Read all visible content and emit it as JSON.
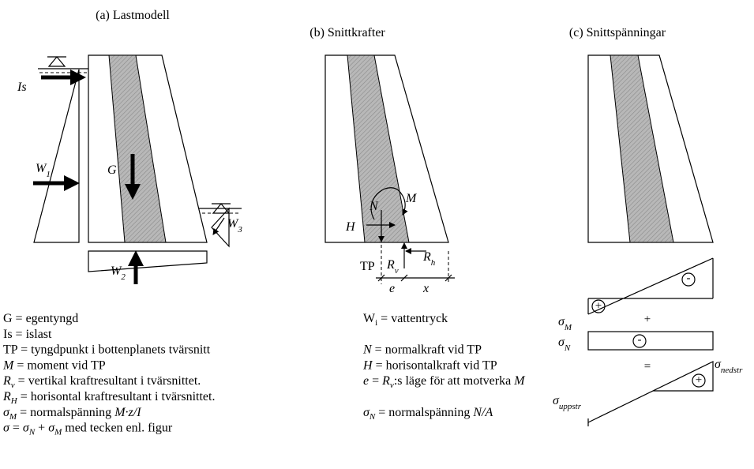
{
  "panel_a": {
    "title": "(a) Lastmodell",
    "is": "Is",
    "w1": {
      "text": "W",
      "sub": "1"
    },
    "g": "G",
    "w3": {
      "text": "W",
      "sub": "3"
    },
    "w2": {
      "text": "W",
      "sub": "2"
    }
  },
  "panel_b": {
    "title": "(b) Snittkrafter",
    "n": "N",
    "m": "M",
    "h": "H",
    "tp": "TP",
    "rv": {
      "text": "R",
      "sub": "v"
    },
    "rh": {
      "text": "R",
      "sub": "h"
    },
    "e": "e",
    "x": "x"
  },
  "panel_c": {
    "title": "(c) Snittspänningar",
    "sigma_m": {
      "text": "σ",
      "sub": "M"
    },
    "sign_m_pos": "+",
    "sign_m_neg": "-",
    "plus": "+",
    "sigma_n": {
      "text": "σ",
      "sub": "N"
    },
    "sign_n": "-",
    "equals": "=",
    "sigma_nedstr": {
      "text": "σ",
      "sub": "nedstr"
    },
    "sigma_uppstr": {
      "text": "σ",
      "sub": "uppstr"
    },
    "sign_result": "+"
  },
  "legend": {
    "left": [
      [
        {
          "text": "G = egentyngd",
          "style": "normal"
        }
      ],
      [
        {
          "text": "Is = islast",
          "style": "normal"
        }
      ],
      [
        {
          "text": "TP = tyngdpunkt i bottenplanets tvärsnitt",
          "style": "normal"
        }
      ],
      [
        {
          "text": "M",
          "style": "italic"
        },
        {
          "text": " = moment  vid TP",
          "style": "normal"
        }
      ],
      [
        {
          "text": "R",
          "style": "italic"
        },
        {
          "text": "v",
          "style": "italic-sub"
        },
        {
          "text": " = vertikal kraftresultant i tvärsnittet.",
          "style": "normal"
        }
      ],
      [
        {
          "text": "R",
          "style": "italic"
        },
        {
          "text": "H",
          "style": "italic-sub"
        },
        {
          "text": " = horisontal kraftresultant i tvärsnittet.",
          "style": "normal"
        }
      ],
      [
        {
          "text": "σ",
          "style": "italic"
        },
        {
          "text": "M",
          "style": "italic-sub"
        },
        {
          "text": " = normalspänning ",
          "style": "normal"
        },
        {
          "text": "M·z/I",
          "style": "italic"
        }
      ],
      [
        {
          "text": "σ",
          "style": "italic"
        },
        {
          "text": " = ",
          "style": "normal"
        },
        {
          "text": "σ",
          "style": "italic"
        },
        {
          "text": "N",
          "style": "italic-sub"
        },
        {
          "text": " + ",
          "style": "normal"
        },
        {
          "text": "σ",
          "style": "italic"
        },
        {
          "text": "M",
          "style": "italic-sub"
        },
        {
          "text": " med tecken enl. figur",
          "style": "normal"
        }
      ]
    ],
    "right": [
      [
        {
          "text": "W",
          "style": "normal"
        },
        {
          "text": "i",
          "style": "sub"
        },
        {
          "text": " = vattentryck",
          "style": "normal"
        }
      ],
      [
        {
          "text": "N",
          "style": "italic"
        },
        {
          "text": " = normalkraft vid TP",
          "style": "normal"
        }
      ],
      [
        {
          "text": "H",
          "style": "italic"
        },
        {
          "text": " = horisontalkraft vid TP",
          "style": "normal"
        }
      ],
      [
        {
          "text": "e",
          "style": "italic"
        },
        {
          "text": " = ",
          "style": "normal"
        },
        {
          "text": "R",
          "style": "italic"
        },
        {
          "text": "v",
          "style": "italic-sub"
        },
        {
          "text": ":s läge för att motverka ",
          "style": "normal"
        },
        {
          "text": "M",
          "style": "italic"
        }
      ],
      [
        {
          "text": "σ",
          "style": "italic"
        },
        {
          "text": "N",
          "style": "italic-sub"
        },
        {
          "text": " = normalspänning ",
          "style": "normal"
        },
        {
          "text": "N/A",
          "style": "italic"
        }
      ]
    ]
  }
}
